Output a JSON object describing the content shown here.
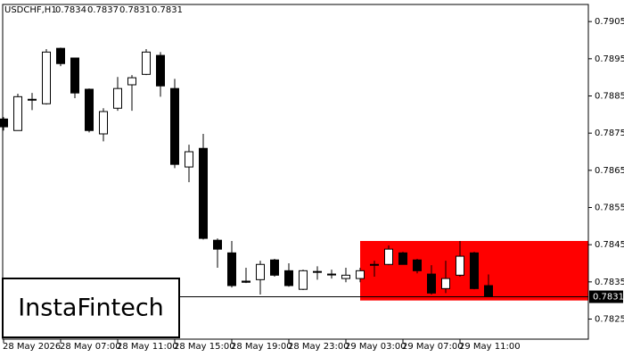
{
  "chart_data": {
    "type": "candlestick",
    "symbol": "USDCHF,H1",
    "header_ohlc": [
      0.7834,
      0.7837,
      0.7831,
      0.7831
    ],
    "categories": [
      "28 May 2026",
      null,
      null,
      null,
      "28 May 07:00",
      null,
      null,
      null,
      "28 May 11:00",
      null,
      null,
      null,
      "28 May 15:00",
      null,
      null,
      null,
      "28 May 19:00",
      null,
      null,
      null,
      "28 May 23:00",
      null,
      null,
      null,
      "29 May 03:00",
      null,
      null,
      null,
      "29 May 07:00",
      null,
      null,
      null,
      "29 May 11:00",
      null,
      null
    ],
    "open": [
      0.78788,
      0.78757,
      0.78841,
      0.78829,
      0.78978,
      0.78952,
      0.78868,
      0.78748,
      0.78817,
      0.7888,
      0.78908,
      0.78959,
      0.7887,
      0.78659,
      0.78709,
      0.78462,
      0.78428,
      0.78352,
      0.78356,
      0.78409,
      0.7838,
      0.7833,
      0.78376,
      0.78371,
      0.78359,
      0.78359,
      0.78395,
      0.78397,
      0.78428,
      0.78409,
      0.78371,
      0.78332,
      0.78368,
      0.78428,
      0.7834
    ],
    "high": [
      0.78793,
      0.78856,
      0.78858,
      0.78976,
      0.7898,
      0.78952,
      0.7887,
      0.78817,
      0.78901,
      0.78906,
      0.78976,
      0.78968,
      0.78896,
      0.78719,
      0.78748,
      0.78467,
      0.7846,
      0.78388,
      0.78407,
      0.78412,
      0.784,
      0.78383,
      0.78392,
      0.78383,
      0.78388,
      0.78388,
      0.78407,
      0.78448,
      0.78431,
      0.78412,
      0.78395,
      0.78407,
      0.7846,
      0.78431,
      0.7837
    ],
    "low": [
      0.78757,
      0.78757,
      0.78812,
      0.78827,
      0.7893,
      0.78844,
      0.78752,
      0.78728,
      0.7881,
      0.7881,
      0.78906,
      0.78848,
      0.78656,
      0.78618,
      0.78464,
      0.78388,
      0.78335,
      0.78347,
      0.78316,
      0.78364,
      0.78337,
      0.78328,
      0.78356,
      0.78359,
      0.78349,
      0.78349,
      0.78364,
      0.78395,
      0.78397,
      0.78373,
      0.78316,
      0.7832,
      0.78364,
      0.7833,
      0.7831
    ],
    "close": [
      0.78767,
      0.78848,
      0.78839,
      0.78968,
      0.78937,
      0.78858,
      0.78757,
      0.78808,
      0.7887,
      0.78899,
      0.78968,
      0.78877,
      0.78666,
      0.787,
      0.78467,
      0.78438,
      0.7834,
      0.78349,
      0.78397,
      0.78368,
      0.7834,
      0.7838,
      0.78378,
      0.78371,
      0.78368,
      0.7838,
      0.78397,
      0.78438,
      0.78397,
      0.7838,
      0.7832,
      0.78359,
      0.78419,
      0.78332,
      0.7831
    ],
    "up_color": "#ffffff",
    "down_color": "#000000",
    "ylim": [
      0.78196,
      0.79096
    ],
    "yticks": [
      0.7825,
      0.7835,
      0.7845,
      0.7855,
      0.7865,
      0.7875,
      0.7885,
      0.7895,
      0.7905
    ],
    "current_price": 0.7831,
    "zone": {
      "high": 0.7846,
      "low": 0.783,
      "color": "#ff0000"
    },
    "watermark": "InstaFintech"
  }
}
